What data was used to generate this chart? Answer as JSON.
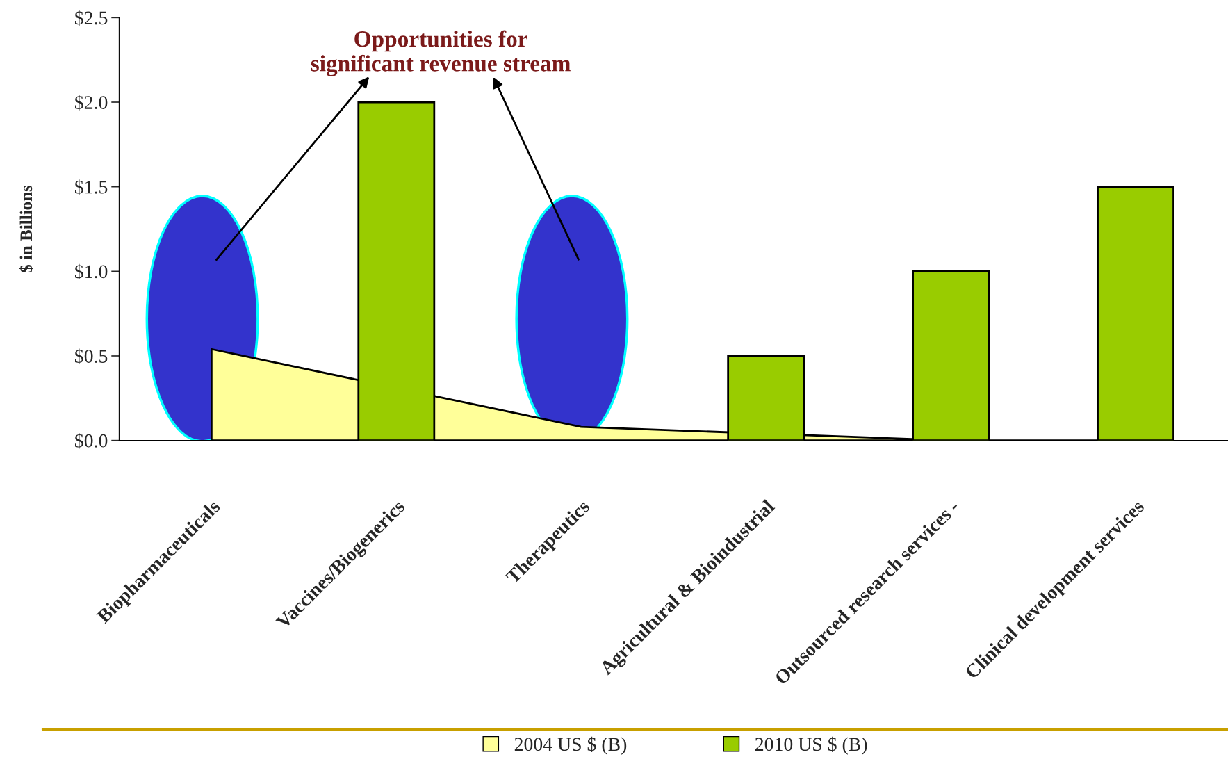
{
  "chart_data": {
    "type": "bar",
    "categories": [
      "Biopharmaceuticals",
      "Vaccines/Biogenerics",
      "Therapeutics",
      "Agricultural & Bioindustrial",
      "Outsourced research services -",
      "Clinical development services"
    ],
    "series": [
      {
        "name": "2004 US $ (B)",
        "type": "area",
        "color": "#ffff99",
        "values": [
          0.54,
          null,
          0.08,
          null,
          0.0,
          0.0
        ]
      },
      {
        "name": "2010 US $ (B)",
        "type": "bar",
        "color": "#99cc00",
        "values": [
          null,
          2.0,
          null,
          0.5,
          1.0,
          1.5
        ]
      }
    ],
    "ylabel": "$ in Billions",
    "ylim": [
      0,
      2.5
    ],
    "yticks": [
      {
        "value": 0,
        "label": "$0.0"
      },
      {
        "value": 0.5,
        "label": "$0.5"
      },
      {
        "value": 1,
        "label": "$1.0"
      },
      {
        "value": 1.5,
        "label": "$1.5"
      },
      {
        "value": 2,
        "label": "$2.0"
      },
      {
        "value": 2.5,
        "label": "$2.5"
      }
    ],
    "annotations": [
      "Opportunities for\nsignificant revenue stream"
    ],
    "legend": "bottom",
    "grid": false
  }
}
